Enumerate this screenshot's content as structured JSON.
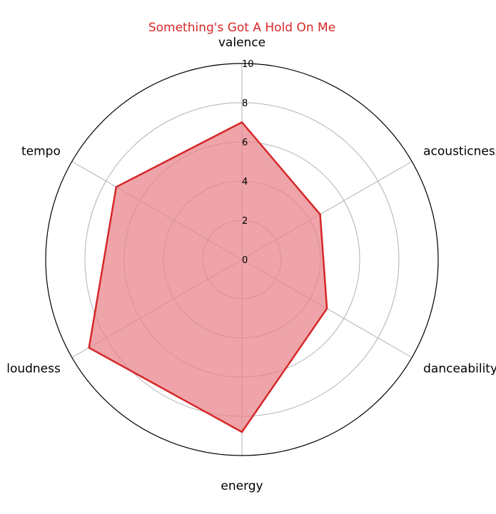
{
  "chart_data": {
    "type": "radar",
    "title": "Something's Got A Hold On Me",
    "axes": [
      "valence",
      "acousticness",
      "danceability",
      "energy",
      "loudness",
      "tempo"
    ],
    "series": [
      {
        "values": [
          7.0,
          4.6,
          5.0,
          8.8,
          9.0,
          7.4
        ]
      }
    ],
    "rlim": [
      0,
      10
    ],
    "rticks": [
      "0",
      "2",
      "4",
      "6",
      "8",
      "10"
    ],
    "grid": true,
    "colors": {
      "title": "#d62728",
      "line": "#d62728",
      "fill": "#e8858c",
      "grid": "#b0b0b0",
      "frame": "#000000"
    }
  }
}
